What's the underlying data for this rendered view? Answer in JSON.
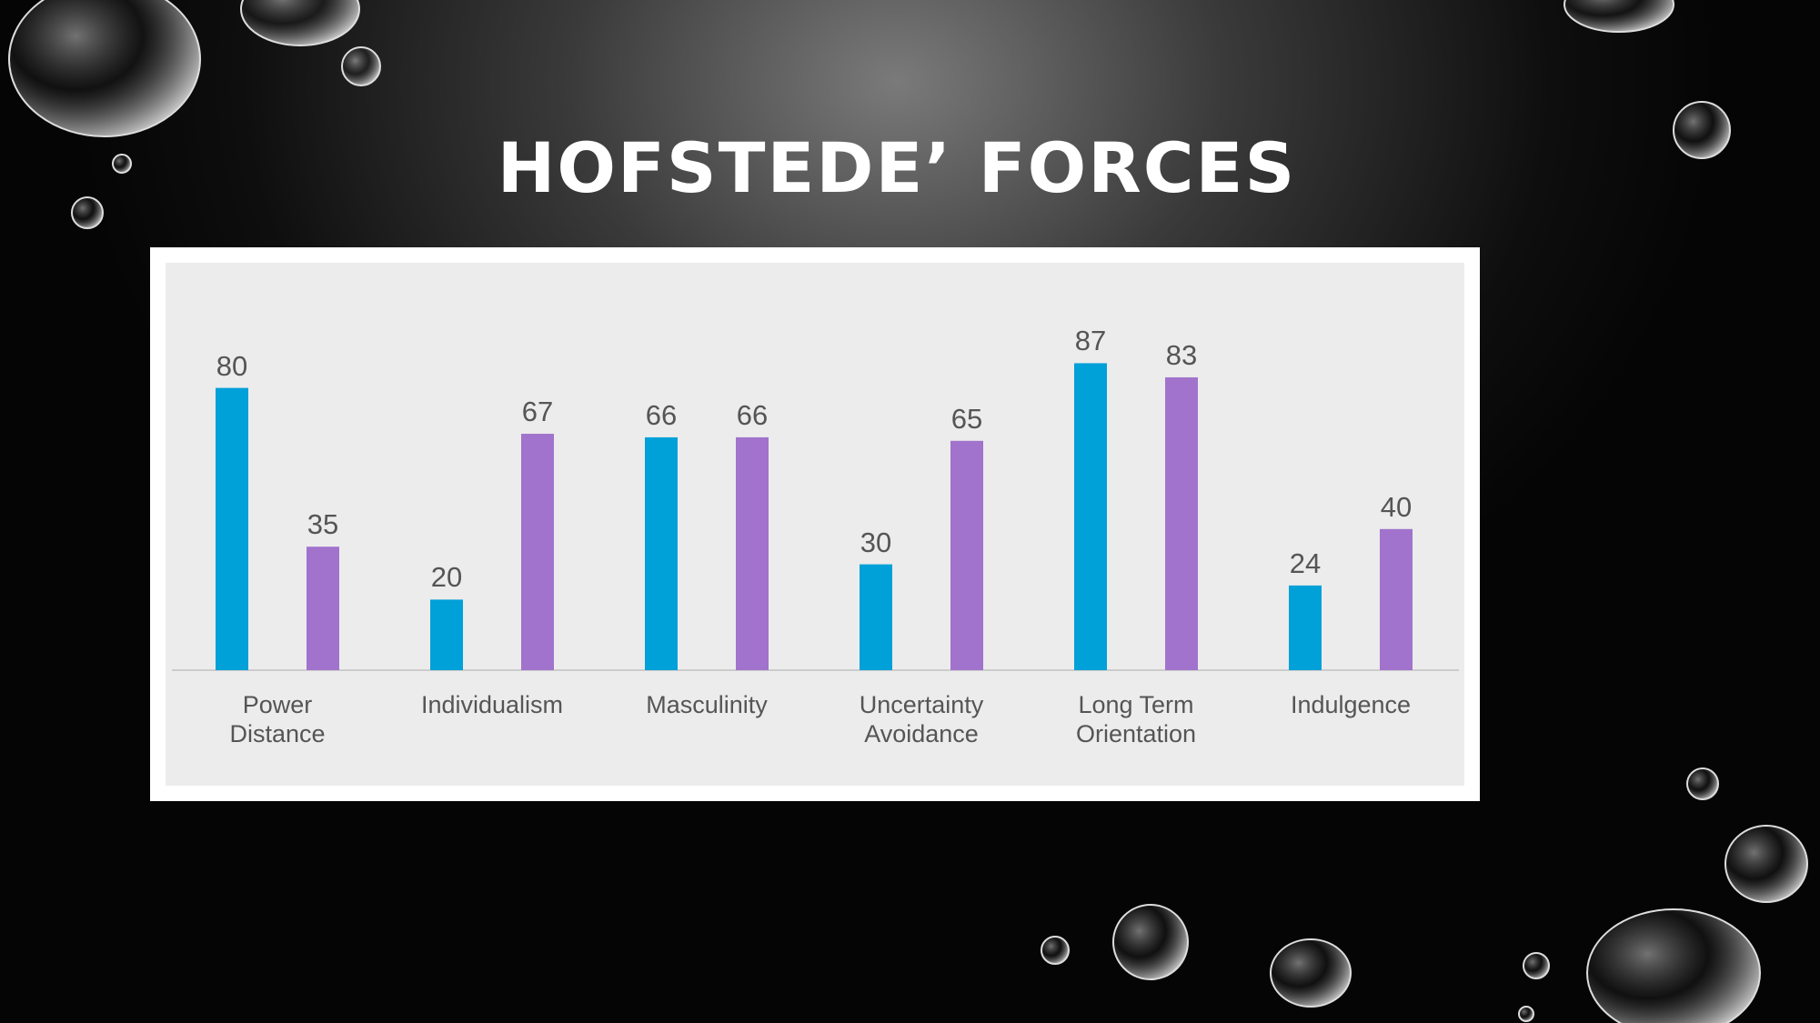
{
  "chart_data": {
    "type": "bar",
    "title": "HOFSTEDE’ FORCES",
    "categories": [
      "Power\nDistance",
      "Individualism",
      "Masculinity",
      "Uncertainty\nAvoidance",
      "Long Term\nOrientation",
      "Indulgence"
    ],
    "series": [
      {
        "color": "#00a0d8",
        "values": [
          80,
          20,
          66,
          30,
          87,
          24
        ]
      },
      {
        "color": "#a173cc",
        "values": [
          35,
          67,
          66,
          65,
          83,
          40
        ]
      }
    ],
    "ylim": [
      0,
      100
    ]
  }
}
